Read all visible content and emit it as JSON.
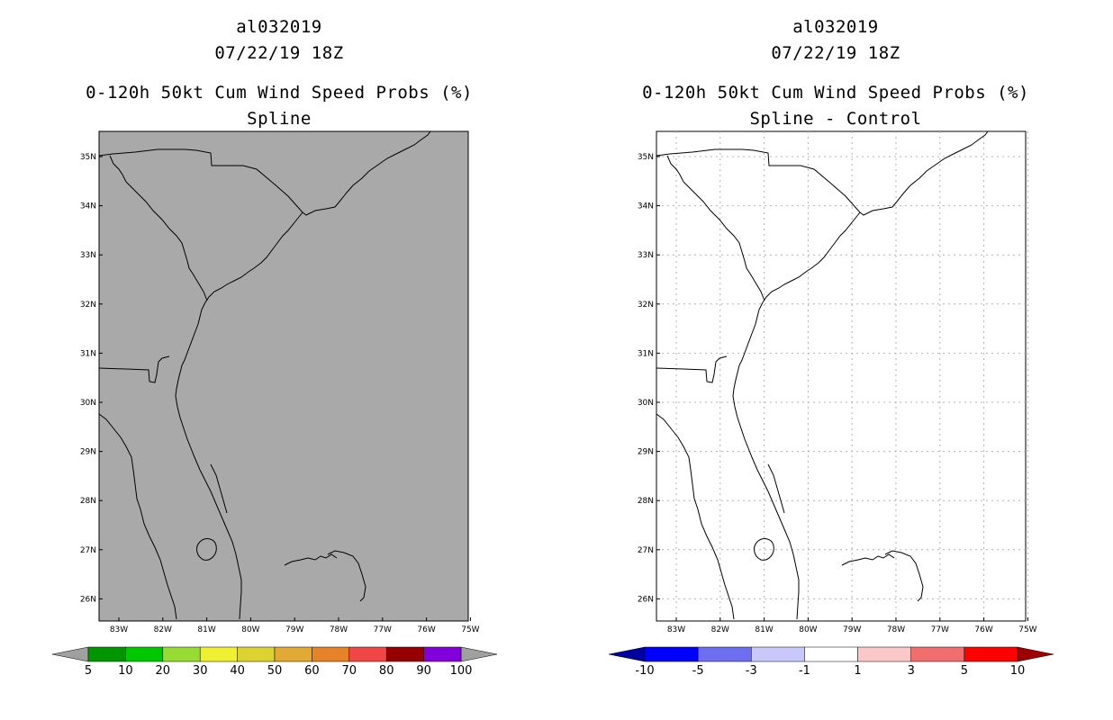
{
  "panels": [
    {
      "storm_id": "al032019",
      "datetime": "07/22/19 18Z",
      "product": "0-120h 50kt Cum Wind Speed Probs (%)",
      "subtitle": "Spline",
      "map_fill": "#a9a9a9"
    },
    {
      "storm_id": "al032019",
      "datetime": "07/22/19 18Z",
      "product": "0-120h 50kt Cum Wind Speed Probs (%)",
      "subtitle": "Spline - Control",
      "map_fill": "#ffffff"
    }
  ],
  "lat_labels": [
    "35N",
    "34N",
    "33N",
    "32N",
    "31N",
    "30N",
    "29N",
    "28N",
    "27N",
    "26N"
  ],
  "lon_labels": [
    "83W",
    "82W",
    "81W",
    "80W",
    "79W",
    "78W",
    "77W",
    "76W",
    "75W"
  ],
  "colorbar_left": {
    "colors": [
      "#009600",
      "#00c800",
      "#96dc32",
      "#f0f032",
      "#dcd232",
      "#e1aa32",
      "#e68228",
      "#f04646",
      "#960000",
      "#8200dc"
    ],
    "end_colors": [
      "#a0a0a0",
      "#a0a0a0"
    ],
    "labels": [
      "5",
      "10",
      "20",
      "30",
      "40",
      "50",
      "60",
      "70",
      "80",
      "90",
      "100"
    ]
  },
  "colorbar_right": {
    "colors": [
      "#0000ff",
      "#6e6ef0",
      "#c8c8fa",
      "#ffffff",
      "#fac8c8",
      "#f06e6e",
      "#ff0000"
    ],
    "end_colors": [
      "#0000a0",
      "#a00000"
    ],
    "labels": [
      "-10",
      "-5",
      "-3",
      "-1",
      "1",
      "3",
      "5",
      "10"
    ]
  }
}
